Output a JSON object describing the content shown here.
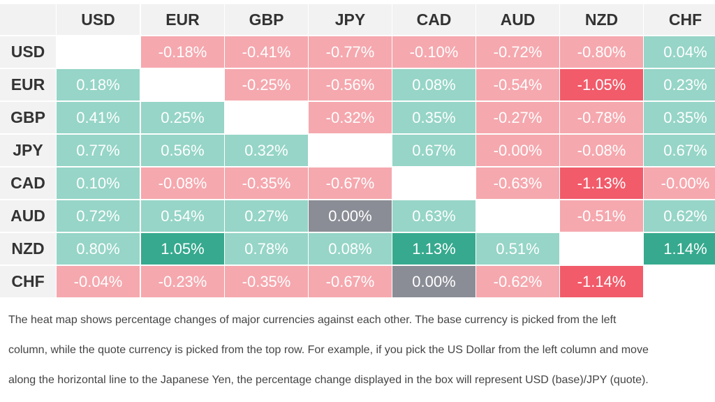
{
  "chart_data": {
    "type": "heatmap",
    "columns": [
      "USD",
      "EUR",
      "GBP",
      "JPY",
      "CAD",
      "AUD",
      "NZD",
      "CHF"
    ],
    "rows": [
      "USD",
      "EUR",
      "GBP",
      "JPY",
      "CAD",
      "AUD",
      "NZD",
      "CHF"
    ],
    "cells": [
      [
        null,
        "-0.18%",
        "-0.41%",
        "-0.77%",
        "-0.10%",
        "-0.72%",
        "-0.80%",
        "0.04%"
      ],
      [
        "0.18%",
        null,
        "-0.25%",
        "-0.56%",
        "0.08%",
        "-0.54%",
        "-1.05%",
        "0.23%"
      ],
      [
        "0.41%",
        "0.25%",
        null,
        "-0.32%",
        "0.35%",
        "-0.27%",
        "-0.78%",
        "0.35%"
      ],
      [
        "0.77%",
        "0.56%",
        "0.32%",
        null,
        "0.67%",
        "-0.00%",
        "-0.08%",
        "0.67%"
      ],
      [
        "0.10%",
        "-0.08%",
        "-0.35%",
        "-0.67%",
        null,
        "-0.63%",
        "-1.13%",
        "-0.00%"
      ],
      [
        "0.72%",
        "0.54%",
        "0.27%",
        "0.00%",
        "0.63%",
        null,
        "-0.51%",
        "0.62%"
      ],
      [
        "0.80%",
        "1.05%",
        "0.78%",
        "0.08%",
        "1.13%",
        "0.51%",
        null,
        "1.14%"
      ],
      [
        "-0.04%",
        "-0.23%",
        "-0.35%",
        "-0.67%",
        "0.00%",
        "-0.62%",
        "-1.14%",
        null
      ]
    ],
    "colors": {
      "positive": "#96d5c7",
      "strong_positive": "#36a98e",
      "negative": "#f5a8ae",
      "strong_negative": "#f15b6a",
      "neutral": "#8b8d96",
      "diagonal": "#ffffff"
    },
    "strong_cells": {
      "positive": [
        [
          6,
          1
        ],
        [
          6,
          4
        ],
        [
          6,
          7
        ]
      ],
      "negative": [
        [
          1,
          6
        ],
        [
          4,
          6
        ],
        [
          7,
          6
        ]
      ],
      "neutral": [
        [
          5,
          3
        ],
        [
          7,
          4
        ]
      ]
    }
  },
  "description": [
    "The heat map shows percentage changes of major currencies against each other. The base currency is picked from the left",
    "column, while the quote currency is picked from the top row. For example, if you pick the US Dollar from the left column and move",
    "along the horizontal line to the Japanese Yen, the percentage change displayed in the box will represent USD (base)/JPY (quote)."
  ]
}
